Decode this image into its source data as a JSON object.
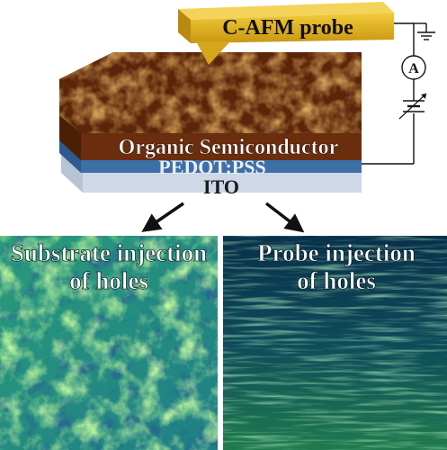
{
  "probe_label": "C-AFM probe",
  "layers": {
    "top": "Organic Semiconductor",
    "middle": "PEDOT:PSS",
    "bottom": "ITO"
  },
  "ammeter_symbol": "A",
  "left_panel": {
    "line1": "Substrate injection",
    "line2": "of holes"
  },
  "right_panel": {
    "line1": "Probe injection",
    "line2": "of holes"
  },
  "colors": {
    "probe": "#d9a818",
    "semiconductor": "#7a3a12",
    "pedot": "#3c6aa4",
    "ito": "#d8e0ec",
    "map_dark": "#0a2a5a",
    "map_mid": "#1e8a78",
    "map_bright": "#8fd64a"
  }
}
